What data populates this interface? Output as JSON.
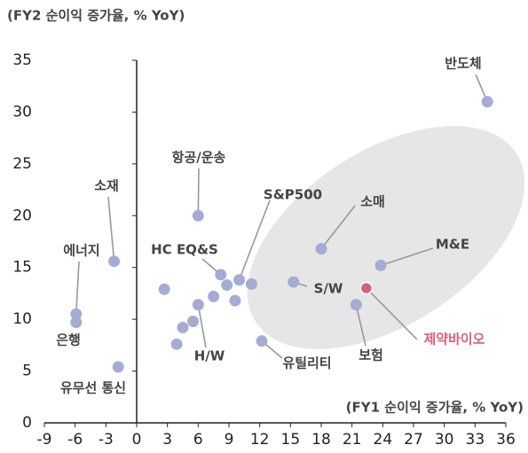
{
  "chart_data": {
    "type": "scatter",
    "y_axis_label": "(FY2 순이익 증가율, % YoY)",
    "x_axis_label": "(FY1 순이익 증가율, % YoY)",
    "x": [
      34.2,
      6,
      -2.2,
      -5.9,
      -5.9,
      -1.8,
      10,
      18,
      23.8,
      15.3,
      22.4,
      21.4,
      12.2,
      8.2,
      6,
      2.7,
      7.5,
      8.8,
      9.6,
      11.2,
      5.5,
      4.5,
      3.9
    ],
    "values": [
      31,
      20,
      15.6,
      10.5,
      9.7,
      5.4,
      13.8,
      16.8,
      15.2,
      13.6,
      13,
      11.4,
      7.9,
      14.3,
      11.4,
      12.9,
      12.2,
      13.3,
      11.8,
      13.4,
      9.8,
      9.2,
      7.6
    ],
    "labels": [
      "반도체",
      "항공/운송",
      "소재",
      "에너지",
      "은행",
      "유무선 통신",
      "S&P500",
      "소매",
      "M&E",
      "S/W",
      "제약바이오",
      "보험",
      "유틸리티",
      "HC EQ&S",
      "H/W",
      null,
      null,
      null,
      null,
      null,
      null,
      null,
      null
    ],
    "color": "#a4acd4",
    "highlight_color": "#d9607a",
    "highlight_index": 10,
    "xlim": [
      -9,
      36
    ],
    "xticks": [
      -9,
      -6,
      -3,
      0,
      3,
      6,
      9,
      12,
      15,
      18,
      21,
      24,
      27,
      30,
      33,
      36
    ],
    "ylim": [
      0,
      35
    ],
    "yticks": [
      0,
      5,
      10,
      15,
      20,
      25,
      30,
      35
    ]
  }
}
